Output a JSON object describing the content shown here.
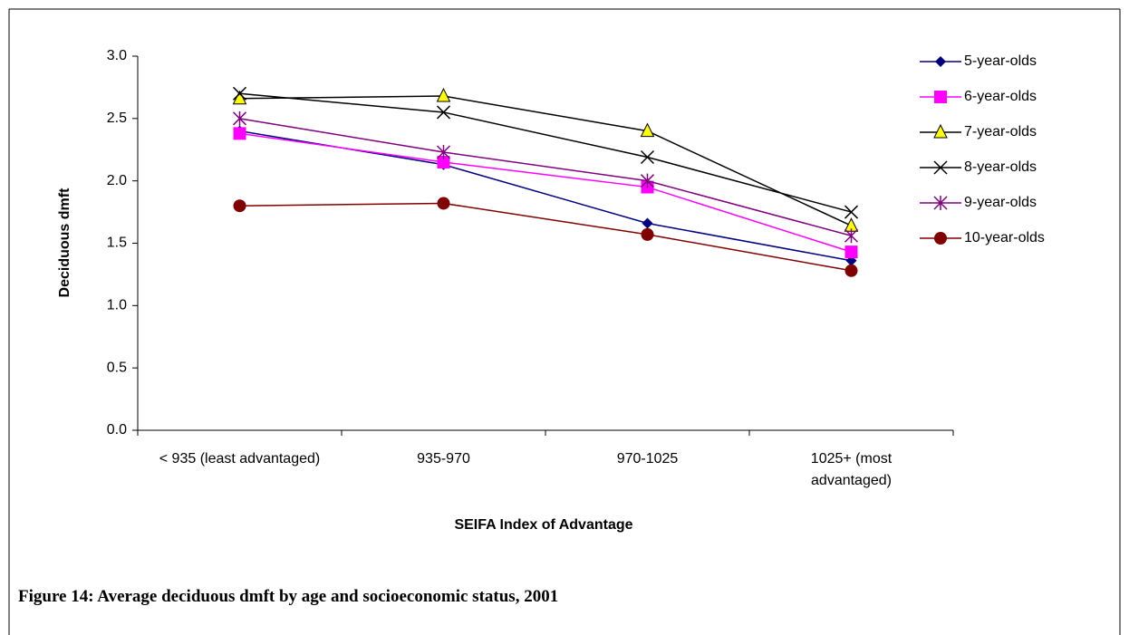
{
  "chart_data": {
    "type": "line",
    "caption": "Figure 14: Average deciduous dmft by age and socioeconomic status, 2001",
    "x_label": "SEIFA Index of Advantage",
    "y_label": "Deciduous dmft",
    "categories": [
      "< 935 (least advantaged)",
      "935-970",
      "970-1025",
      "1025+ (most advantaged)"
    ],
    "ylim": [
      0,
      3
    ],
    "yticks": [
      {
        "value": 0,
        "label": "0.0"
      },
      {
        "value": 0.5,
        "label": "0.5"
      },
      {
        "value": 1,
        "label": "1.0"
      },
      {
        "value": 1.5,
        "label": "1.5"
      },
      {
        "value": 2,
        "label": "2.0"
      },
      {
        "value": 2.5,
        "label": "2.5"
      },
      {
        "value": 3,
        "label": "3.0"
      }
    ],
    "series": [
      {
        "name": "5-year-olds",
        "color": "#000080",
        "marker": "diamond",
        "marker_fill": "#000080",
        "values": [
          2.4,
          2.13,
          1.66,
          1.36
        ]
      },
      {
        "name": "6-year-olds",
        "color": "#ff00ff",
        "marker": "square",
        "marker_fill": "#ff00ff",
        "values": [
          2.38,
          2.15,
          1.95,
          1.43
        ]
      },
      {
        "name": "7-year-olds",
        "color": "#000000",
        "marker": "triangle",
        "marker_fill": "#ffff00",
        "values": [
          2.66,
          2.68,
          2.4,
          1.64
        ]
      },
      {
        "name": "8-year-olds",
        "color": "#000000",
        "marker": "x",
        "marker_fill": "#000000",
        "values": [
          2.7,
          2.55,
          2.19,
          1.75
        ]
      },
      {
        "name": "9-year-olds",
        "color": "#800080",
        "marker": "star",
        "marker_fill": "#800080",
        "values": [
          2.5,
          2.23,
          2.0,
          1.56
        ]
      },
      {
        "name": "10-year-olds",
        "color": "#800000",
        "marker": "circle",
        "marker_fill": "#800000",
        "values": [
          1.8,
          1.82,
          1.57,
          1.28
        ]
      }
    ]
  }
}
